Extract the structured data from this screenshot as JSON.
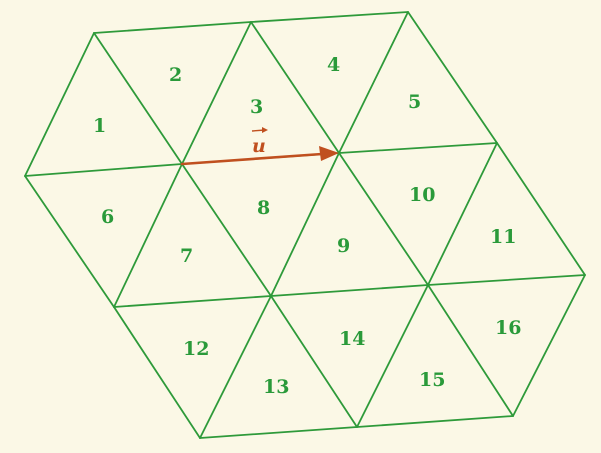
{
  "diagram": {
    "colors": {
      "background": "#fbf8e6",
      "edge": "#2e9a3a",
      "label": "#2a9a3a",
      "vector": "#c0501f"
    },
    "triangle_labels": [
      "1",
      "2",
      "3",
      "4",
      "5",
      "6",
      "7",
      "8",
      "9",
      "10",
      "11",
      "12",
      "13",
      "14",
      "15",
      "16"
    ],
    "vector": {
      "label": "u",
      "arrow": "right-arrow-accent"
    }
  }
}
